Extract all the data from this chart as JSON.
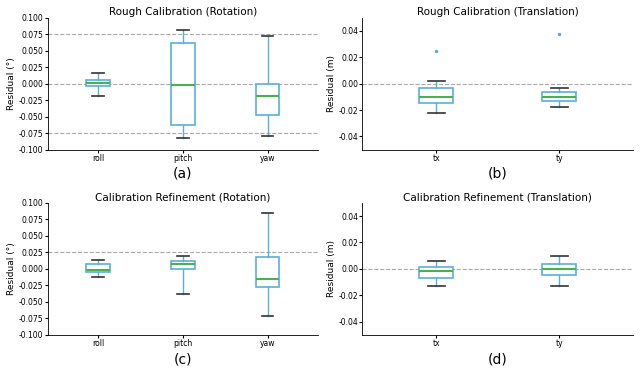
{
  "panels": {
    "a": {
      "title": "Rough Calibration (Rotation)",
      "xlabel_label": "(a)",
      "ylabel": "Residual (°)",
      "categories": [
        "roll",
        "pitch",
        "yaw"
      ],
      "ylim": [
        -0.1,
        0.1
      ],
      "yticks": [
        -0.1,
        -0.075,
        -0.05,
        -0.025,
        0.0,
        0.025,
        0.05,
        0.075,
        0.1
      ],
      "ytick_labels": [
        "-0.100",
        "-0.075",
        "-0.050",
        "-0.025",
        "0.000",
        "0.025",
        "0.050",
        "0.075",
        "0.100"
      ],
      "hlines": [
        0.075,
        0.0,
        -0.075
      ],
      "boxes": [
        {
          "med": 0.001,
          "q1": -0.003,
          "q3": 0.005,
          "whislo": -0.018,
          "whishi": 0.016,
          "fliers": []
        },
        {
          "med": -0.002,
          "q1": -0.062,
          "q3": 0.062,
          "whislo": -0.082,
          "whishi": 0.082,
          "fliers": []
        },
        {
          "med": -0.018,
          "q1": -0.048,
          "q3": 0.0,
          "whislo": -0.08,
          "whishi": 0.072,
          "fliers": []
        }
      ]
    },
    "b": {
      "title": "Rough Calibration (Translation)",
      "xlabel_label": "(b)",
      "ylabel": "Residual (m)",
      "categories": [
        "tx",
        "ty"
      ],
      "ylim": [
        -0.05,
        0.05
      ],
      "yticks": [
        -0.04,
        -0.02,
        0.0,
        0.02,
        0.04
      ],
      "ytick_labels": [
        "-0.04",
        "-0.02",
        "0.00",
        "0.02",
        "0.04"
      ],
      "hlines": [
        0.0
      ],
      "boxes": [
        {
          "med": -0.01,
          "q1": -0.015,
          "q3": -0.003,
          "whislo": -0.022,
          "whishi": 0.002,
          "fliers": [
            0.025
          ]
        },
        {
          "med": -0.01,
          "q1": -0.013,
          "q3": -0.006,
          "whislo": -0.018,
          "whishi": -0.003,
          "fliers": [
            0.038
          ]
        }
      ]
    },
    "c": {
      "title": "Calibration Refinement (Rotation)",
      "xlabel_label": "(c)",
      "ylabel": "Residual (°)",
      "categories": [
        "roll",
        "pitch",
        "yaw"
      ],
      "ylim": [
        -0.1,
        0.1
      ],
      "yticks": [
        -0.1,
        -0.075,
        -0.05,
        -0.025,
        0.0,
        0.025,
        0.05,
        0.075,
        0.1
      ],
      "ytick_labels": [
        "-0.100",
        "-0.075",
        "-0.050",
        "-0.025",
        "0.000",
        "0.025",
        "0.050",
        "0.075",
        "0.100"
      ],
      "hlines": [
        0.025
      ],
      "boxes": [
        {
          "med": -0.002,
          "q1": -0.005,
          "q3": 0.008,
          "whislo": -0.013,
          "whishi": 0.013,
          "fliers": []
        },
        {
          "med": 0.007,
          "q1": 0.0,
          "q3": 0.012,
          "whislo": -0.038,
          "whishi": 0.02,
          "fliers": []
        },
        {
          "med": -0.015,
          "q1": -0.028,
          "q3": 0.018,
          "whislo": -0.072,
          "whishi": 0.085,
          "fliers": []
        }
      ]
    },
    "d": {
      "title": "Calibration Refinement (Translation)",
      "xlabel_label": "(d)",
      "ylabel": "Residual (m)",
      "categories": [
        "tx",
        "ty"
      ],
      "ylim": [
        -0.05,
        0.05
      ],
      "yticks": [
        -0.04,
        -0.02,
        0.0,
        0.02,
        0.04
      ],
      "ytick_labels": [
        "-0.04",
        "-0.02",
        "0.00",
        "0.02",
        "0.04"
      ],
      "hlines": [
        0.0
      ],
      "boxes": [
        {
          "med": -0.002,
          "q1": -0.007,
          "q3": 0.001,
          "whislo": -0.013,
          "whishi": 0.006,
          "fliers": []
        },
        {
          "med": 0.0,
          "q1": -0.005,
          "q3": 0.004,
          "whislo": -0.013,
          "whishi": 0.01,
          "fliers": []
        }
      ]
    }
  },
  "box_facecolor": "#ffffff",
  "box_edgecolor": "#5bafd6",
  "median_color": "#4caf50",
  "whisker_color": "#5bafd6",
  "cap_color": "#333333",
  "flier_color": "#5bafd6",
  "hline_color": "#aaaaaa",
  "bg_color": "#ffffff",
  "title_fontsize": 7.5,
  "label_fontsize": 6.5,
  "tick_fontsize": 5.5,
  "xlabel_fontsize": 10
}
